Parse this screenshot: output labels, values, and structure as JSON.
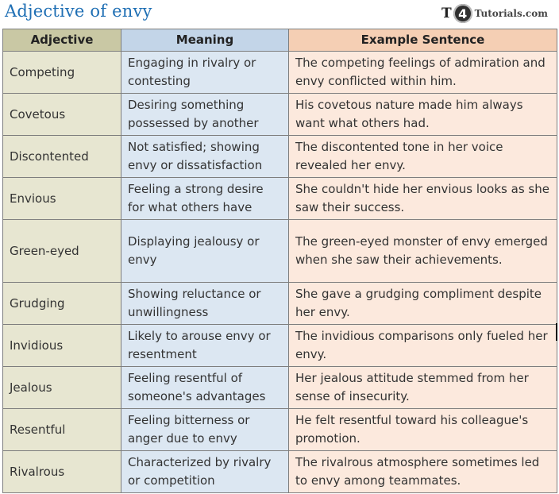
{
  "title": "Adjective of envy",
  "logo": {
    "t": "T",
    "four": "4",
    "rest": "Tutorials.com"
  },
  "headers": {
    "adjective": "Adjective",
    "meaning": "Meaning",
    "example": "Example Sentence"
  },
  "rows": [
    {
      "adjective": "Competing",
      "meaning": "Engaging in rivalry or contesting",
      "example": "The competing feelings of admiration and envy conflicted within him."
    },
    {
      "adjective": "Covetous",
      "meaning": "Desiring something possessed by another",
      "example": "His covetous nature made him always want what others had."
    },
    {
      "adjective": "Discontented",
      "meaning": "Not satisfied; showing envy or dissatisfaction",
      "example": "The discontented tone in her voice revealed her envy."
    },
    {
      "adjective": "Envious",
      "meaning": "Feeling a strong desire for what others have",
      "example": "She couldn't hide her envious looks as she saw their success."
    },
    {
      "adjective": "Green-eyed",
      "meaning": "Displaying jealousy or envy",
      "example": "The green-eyed monster of envy emerged when she saw their achievements."
    },
    {
      "adjective": "Grudging",
      "meaning": "Showing reluctance or unwillingness",
      "example": "She gave a grudging compliment despite her envy."
    },
    {
      "adjective": "Invidious",
      "meaning": "Likely to arouse envy or resentment",
      "example": "The invidious comparisons only fueled her envy."
    },
    {
      "adjective": "Jealous",
      "meaning": "Feeling resentful of someone's advantages",
      "example": "Her jealous attitude stemmed from her sense of insecurity."
    },
    {
      "adjective": "Resentful",
      "meaning": "Feeling bitterness or anger due to envy",
      "example": "He felt resentful toward his colleague's promotion."
    },
    {
      "adjective": "Rivalrous",
      "meaning": "Characterized by rivalry or competition",
      "example": "The rivalrous atmosphere sometimes led to envy among teammates."
    }
  ]
}
